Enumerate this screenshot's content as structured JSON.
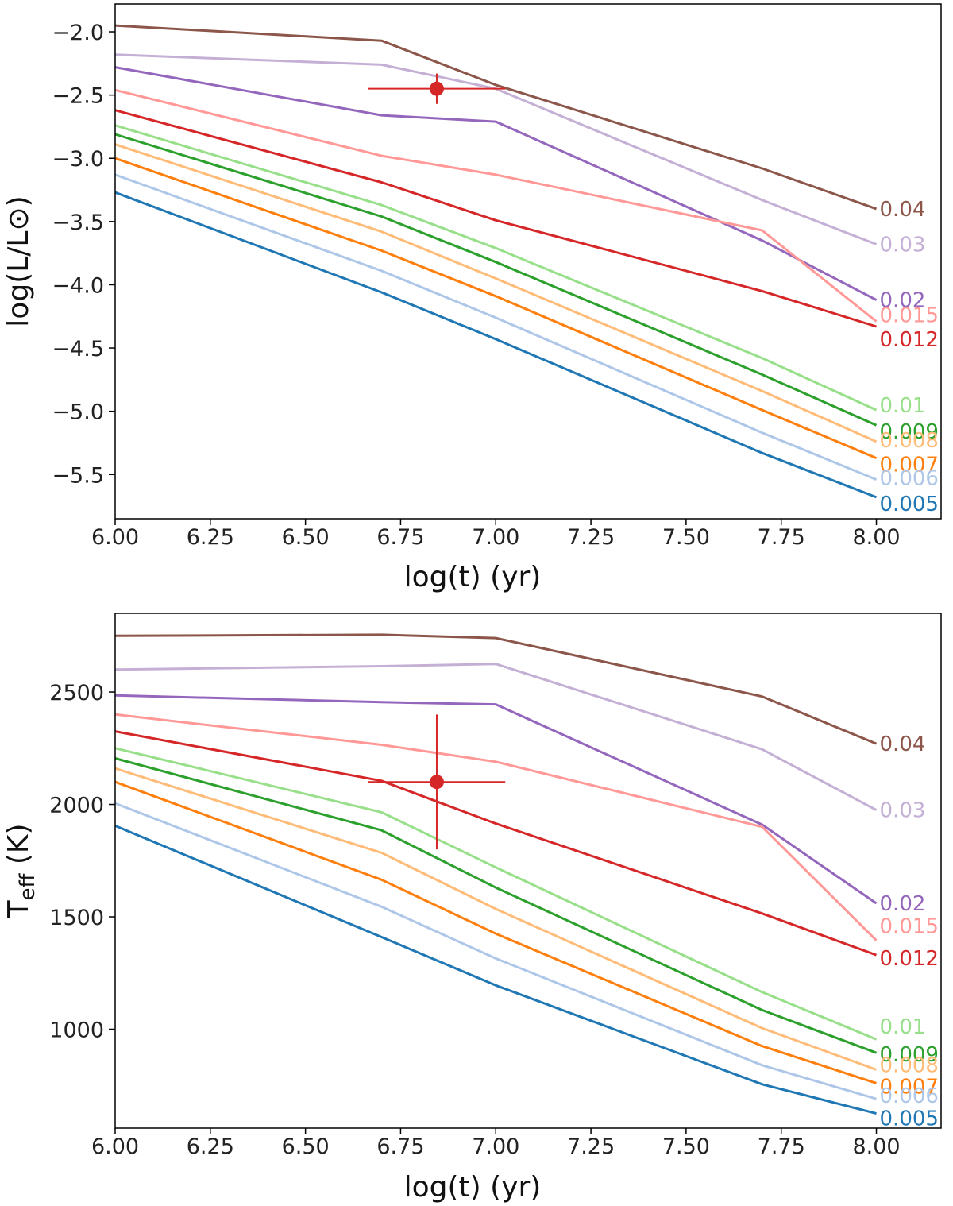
{
  "chart_data": [
    {
      "type": "line",
      "xlabel": "log(t) (yr)",
      "ylabel": "log(L/L⊙)",
      "xlim": [
        6.0,
        8.17
      ],
      "ylim": [
        -5.85,
        -1.78
      ],
      "xticks": [
        "6.00",
        "6.25",
        "6.50",
        "6.75",
        "7.00",
        "7.25",
        "7.50",
        "7.75",
        "8.00"
      ],
      "yticks": [
        "−2.0",
        "−2.5",
        "−3.0",
        "−3.5",
        "−4.0",
        "−4.5",
        "−5.0",
        "−5.5"
      ],
      "x": [
        6.0,
        6.7,
        7.0,
        7.7,
        8.0
      ],
      "series": [
        {
          "name": "0.04",
          "color": "#8c564b",
          "values": [
            -1.95,
            -2.07,
            -2.42,
            -3.08,
            -3.4
          ]
        },
        {
          "name": "0.03",
          "color": "#c5b0d5",
          "values": [
            -2.18,
            -2.26,
            -2.45,
            -3.33,
            -3.68
          ]
        },
        {
          "name": "0.02",
          "color": "#9467bd",
          "values": [
            -2.28,
            -2.66,
            -2.71,
            -3.65,
            -4.12
          ]
        },
        {
          "name": "0.015",
          "color": "#ff9896",
          "values": [
            -2.46,
            -2.98,
            -3.13,
            -3.57,
            -4.29
          ]
        },
        {
          "name": "0.012",
          "color": "#d62728",
          "values": [
            -2.62,
            -3.19,
            -3.49,
            -4.05,
            -4.33
          ]
        },
        {
          "name": "0.01",
          "color": "#98df8a",
          "values": [
            -2.74,
            -3.37,
            -3.71,
            -4.58,
            -4.99
          ]
        },
        {
          "name": "0.009",
          "color": "#2ca02c",
          "values": [
            -2.81,
            -3.46,
            -3.82,
            -4.71,
            -5.11
          ]
        },
        {
          "name": "0.008",
          "color": "#ffbb78",
          "values": [
            -2.89,
            -3.58,
            -3.95,
            -4.84,
            -5.24
          ]
        },
        {
          "name": "0.007",
          "color": "#ff7f0e",
          "values": [
            -3.0,
            -3.73,
            -4.09,
            -4.99,
            -5.37
          ]
        },
        {
          "name": "0.006",
          "color": "#aec7e8",
          "values": [
            -3.13,
            -3.89,
            -4.26,
            -5.17,
            -5.54
          ]
        },
        {
          "name": "0.005",
          "color": "#1f77b4",
          "values": [
            -3.27,
            -4.06,
            -4.43,
            -5.33,
            -5.68
          ]
        }
      ],
      "point": {
        "x": 6.845,
        "y": -2.45,
        "xerr": [
          0.18,
          0.18
        ],
        "yerr": [
          0.12,
          0.12
        ],
        "color": "#d62728"
      }
    },
    {
      "type": "line",
      "xlabel": "log(t) (yr)",
      "ylabel": "T_eff (K)",
      "ylabel_main": "T",
      "ylabel_sub": "eff",
      "ylabel_tail": " (K)",
      "xlim": [
        6.0,
        8.17
      ],
      "ylim": [
        560,
        2850
      ],
      "xticks": [
        "6.00",
        "6.25",
        "6.50",
        "6.75",
        "7.00",
        "7.25",
        "7.50",
        "7.75",
        "8.00"
      ],
      "yticks": [
        "1000",
        "1500",
        "2000",
        "2500"
      ],
      "x": [
        6.0,
        6.7,
        7.0,
        7.7,
        8.0
      ],
      "series": [
        {
          "name": "0.04",
          "color": "#8c564b",
          "values": [
            2750,
            2755,
            2740,
            2480,
            2270
          ]
        },
        {
          "name": "0.03",
          "color": "#c5b0d5",
          "values": [
            2600,
            2615,
            2625,
            2245,
            1975
          ]
        },
        {
          "name": "0.02",
          "color": "#9467bd",
          "values": [
            2485,
            2455,
            2445,
            1910,
            1560
          ]
        },
        {
          "name": "0.015",
          "color": "#ff9896",
          "values": [
            2400,
            2265,
            2190,
            1900,
            1395
          ]
        },
        {
          "name": "0.012",
          "color": "#d62728",
          "values": [
            2325,
            2105,
            1915,
            1515,
            1330
          ]
        },
        {
          "name": "0.01",
          "color": "#98df8a",
          "values": [
            2250,
            1965,
            1720,
            1165,
            955
          ]
        },
        {
          "name": "0.009",
          "color": "#2ca02c",
          "values": [
            2205,
            1885,
            1630,
            1085,
            895
          ]
        },
        {
          "name": "0.008",
          "color": "#ffbb78",
          "values": [
            2160,
            1785,
            1535,
            1005,
            820
          ]
        },
        {
          "name": "0.007",
          "color": "#ff7f0e",
          "values": [
            2100,
            1665,
            1425,
            925,
            760
          ]
        },
        {
          "name": "0.006",
          "color": "#aec7e8",
          "values": [
            2005,
            1545,
            1315,
            840,
            690
          ]
        },
        {
          "name": "0.005",
          "color": "#1f77b4",
          "values": [
            1905,
            1410,
            1195,
            755,
            625
          ]
        }
      ],
      "point": {
        "x": 6.845,
        "y": 2100,
        "xerr": [
          0.18,
          0.18
        ],
        "yerr": [
          300,
          300
        ],
        "color": "#d62728"
      }
    }
  ]
}
